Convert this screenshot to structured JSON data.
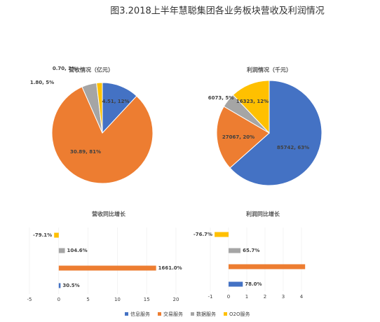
{
  "title": "图3.2018上半年慧聪集团各业务板块营收及利润情况",
  "legend": [
    {
      "name": "信息服务",
      "color": "#4472c4"
    },
    {
      "name": "交易服务",
      "color": "#ed7d31"
    },
    {
      "name": "数据服务",
      "color": "#a5a5a5"
    },
    {
      "name": "O2O服务",
      "color": "#ffc000"
    }
  ],
  "chart_data": [
    {
      "type": "pie",
      "title": "营收情况（亿元）",
      "values": [
        4.51,
        30.89,
        1.8,
        0.7
      ],
      "value_labels": [
        "4.51, 12%",
        "30.89, 81%",
        "1.80, 5%",
        "0.70, 2%"
      ]
    },
    {
      "type": "pie",
      "title": "利润情况（千元）",
      "values": [
        85742,
        27067,
        6073,
        16323
      ],
      "value_labels": [
        "85742, 63%",
        "27067, 20%",
        "6073, 5%",
        "16323, 12%"
      ]
    },
    {
      "type": "bar",
      "title": "营收同比增长",
      "values": [
        0.305,
        16.61,
        1.046,
        -0.791
      ],
      "value_labels": [
        "30.5%",
        "1661.0%",
        "104.6%",
        "-79.1%"
      ],
      "xlim": [
        -5,
        20
      ],
      "xticks": [
        -5,
        0,
        5,
        10,
        15,
        20
      ],
      "grid": true
    },
    {
      "type": "bar",
      "title": "利润同比增长",
      "values": [
        0.78,
        4.2,
        0.657,
        -0.767
      ],
      "value_labels": [
        "78.0%",
        null,
        "65.7%",
        "-76.7%"
      ],
      "xlim": [
        -1,
        4
      ],
      "xticks": [
        -1,
        0,
        1,
        2,
        3,
        4
      ],
      "grid": true
    }
  ]
}
